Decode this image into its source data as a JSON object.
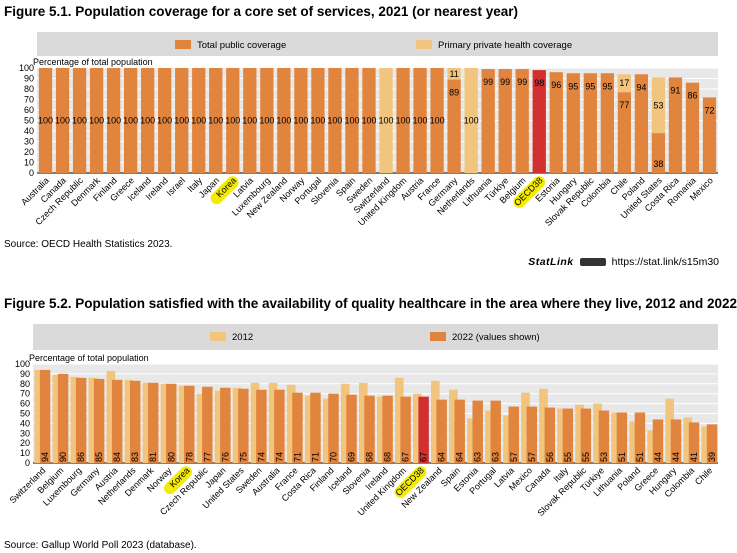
{
  "colors": {
    "total": "#e1843e",
    "private": "#f2c57e",
    "oecd": "#d1302f",
    "legend_band": "#dadada",
    "plot_bg": "#e8e8e8",
    "grid": "#ffffff",
    "highlight": "#f4ec00"
  },
  "figure1": {
    "title": "Figure 5.1. Population coverage for a core set of services, 2021 (or nearest year)",
    "source": "Source: OECD Health Statistics 2023.",
    "statlink_label": "StatLink",
    "statlink_url": "https://stat.link/s15m30"
  },
  "figure2": {
    "title": "Figure 5.2. Population satisfied with the availability of quality healthcare in the area where they live, 2012 and 2022",
    "source": "Source: Gallup World Poll 2023 (database)."
  },
  "chart_data": [
    {
      "type": "bar",
      "stacked": true,
      "title": "Figure 5.1. Population coverage for a core set of services, 2021 (or nearest year)",
      "ylabel": "Percentage of total population",
      "ylim": [
        0,
        100
      ],
      "yticks": [
        0,
        10,
        20,
        30,
        40,
        50,
        60,
        70,
        80,
        90,
        100
      ],
      "grid": true,
      "legend_position": "top",
      "highlighted_categories": [
        "Korea",
        "OECD38"
      ],
      "categories": [
        "Australia",
        "Canada",
        "Czech Republic",
        "Denmark",
        "Finland",
        "Greece",
        "Iceland",
        "Ireland",
        "Israel",
        "Italy",
        "Japan",
        "Korea",
        "Latvia",
        "Luxembourg",
        "New Zealand",
        "Norway",
        "Portugal",
        "Slovenia",
        "Spain",
        "Sweden",
        "Switzerland",
        "United Kingdom",
        "Austria",
        "France",
        "Germany",
        "Netherlands",
        "Lithuania",
        "Türkiye",
        "Belgium",
        "OECD38",
        "Estonia",
        "Hungary",
        "Slovak Republic",
        "Colombia",
        "Chile",
        "Poland",
        "United States",
        "Costa Rica",
        "Romania",
        "Mexico"
      ],
      "series": [
        {
          "name": "Total public coverage",
          "values": [
            100,
            100,
            100,
            100,
            100,
            100,
            100,
            100,
            100,
            100,
            100,
            100,
            100,
            100,
            100,
            100,
            100,
            100,
            100,
            100,
            0,
            100,
            100,
            100,
            89,
            0,
            99,
            99,
            99,
            98,
            96,
            95,
            95,
            95,
            77,
            94,
            38,
            91,
            86,
            72
          ]
        },
        {
          "name": "Primary private health coverage",
          "values": [
            0,
            0,
            0,
            0,
            0,
            0,
            0,
            0,
            0,
            0,
            0,
            0,
            0,
            0,
            0,
            0,
            0,
            0,
            0,
            0,
            100,
            0,
            0,
            0,
            11,
            100,
            0,
            0,
            0,
            0,
            0,
            0,
            0,
            0,
            17,
            0,
            53,
            0,
            0,
            0
          ]
        }
      ],
      "value_labels": [
        "100",
        "100",
        "100",
        "100",
        "100",
        "100",
        "100",
        "100",
        "100",
        "100",
        "100",
        "100",
        "100",
        "100",
        "100",
        "100",
        "100",
        "100",
        "100",
        "100",
        "100",
        "100",
        "100",
        "100",
        "89",
        "100",
        "99",
        "99",
        "99",
        "98",
        "96",
        "95",
        "95",
        "95",
        "77",
        "94",
        "38",
        "91",
        "86",
        "72"
      ],
      "private_labels": [
        "",
        "",
        "",
        "",
        "",
        "",
        "",
        "",
        "",
        "",
        "",
        "",
        "",
        "",
        "",
        "",
        "",
        "",
        "",
        "",
        "",
        "",
        "",
        "",
        "11",
        "",
        "",
        "",
        "",
        "",
        "",
        "",
        "",
        "",
        "17",
        "",
        "53",
        "",
        "",
        ""
      ]
    },
    {
      "type": "bar",
      "title": "Figure 5.2. Population satisfied with the availability of quality healthcare in the area where they live, 2012 and 2022",
      "ylabel": "Percentage of total population",
      "ylim": [
        0,
        100
      ],
      "yticks": [
        0,
        10,
        20,
        30,
        40,
        50,
        60,
        70,
        80,
        90,
        100
      ],
      "grid": true,
      "legend_position": "top",
      "highlighted_categories": [
        "Korea",
        "OECD38"
      ],
      "categories": [
        "Switzerland",
        "Belgium",
        "Luxembourg",
        "Germany",
        "Austria",
        "Netherlands",
        "Denmark",
        "Norway",
        "Korea",
        "Czech Republic",
        "Japan",
        "United States",
        "Sweden",
        "Australia",
        "France",
        "Costa Rica",
        "Finland",
        "Iceland",
        "Slovenia",
        "Ireland",
        "United Kingdom",
        "OECD38",
        "New Zealand",
        "Spain",
        "Estonia",
        "Portugal",
        "Latvia",
        "Mexico",
        "Canada",
        "Italy",
        "Slovak Republic",
        "Türkiye",
        "Lithuania",
        "Poland",
        "Greece",
        "Hungary",
        "Colombia",
        "Chile"
      ],
      "series": [
        {
          "name": "2012",
          "values": [
            94,
            89,
            87,
            86,
            93,
            84,
            81,
            80,
            78,
            70,
            73,
            76,
            81,
            81,
            79,
            68,
            65,
            80,
            81,
            67,
            86,
            70,
            83,
            74,
            45,
            53,
            48,
            71,
            75,
            55,
            59,
            60,
            51,
            42,
            33,
            65,
            46,
            37
          ]
        },
        {
          "name": "2022 (values shown)",
          "values": [
            94,
            90,
            86,
            85,
            84,
            83,
            81,
            80,
            78,
            77,
            76,
            75,
            74,
            74,
            71,
            71,
            70,
            69,
            68,
            68,
            67,
            67,
            64,
            64,
            63,
            63,
            57,
            57,
            56,
            55,
            55,
            53,
            51,
            51,
            44,
            44,
            41,
            39
          ]
        }
      ],
      "value_labels": [
        "94",
        "90",
        "86",
        "85",
        "84",
        "83",
        "81",
        "80",
        "78",
        "77",
        "76",
        "75",
        "74",
        "74",
        "71",
        "71",
        "70",
        "69",
        "68",
        "68",
        "67",
        "67",
        "64",
        "64",
        "63",
        "63",
        "57",
        "57",
        "56",
        "55",
        "55",
        "53",
        "51",
        "51",
        "44",
        "44",
        "41",
        "39"
      ]
    }
  ]
}
